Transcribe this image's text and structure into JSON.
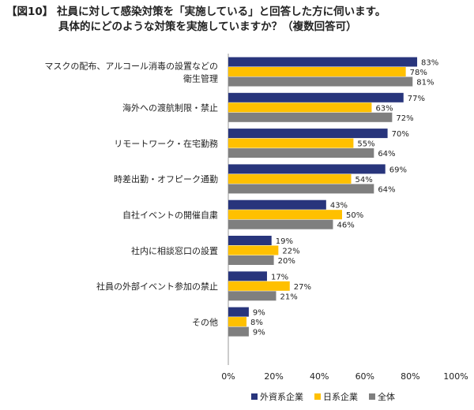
{
  "title": {
    "line1": "【図10】 社員に対して感染対策を「実施している」と回答した方に伺います。",
    "line2": "具体的にどのような対策を実施していますか？（複数回答可）"
  },
  "chart_data": {
    "type": "bar",
    "orientation": "horizontal",
    "categories": [
      [
        "マスクの配布、アルコール消毒の設置などの",
        "衛生管理"
      ],
      [
        "海外への渡航制限・禁止"
      ],
      [
        "リモートワーク・在宅勤務"
      ],
      [
        "時差出勤・オフピーク通勤"
      ],
      [
        "自社イベントの開催自粛"
      ],
      [
        "社内に相談窓口の設置"
      ],
      [
        "社員の外部イベント参加の禁止"
      ],
      [
        "その他"
      ]
    ],
    "series": [
      {
        "name": "外資系企業",
        "color": "#28357c",
        "values": [
          83,
          77,
          70,
          69,
          43,
          19,
          17,
          9
        ]
      },
      {
        "name": "日系企業",
        "color": "#ffc000",
        "values": [
          78,
          63,
          55,
          54,
          50,
          22,
          27,
          8
        ]
      },
      {
        "name": "全体",
        "color": "#7f7f7f",
        "values": [
          81,
          72,
          64,
          64,
          46,
          20,
          21,
          9
        ]
      }
    ],
    "value_suffix": "%",
    "xlim": [
      0,
      100
    ],
    "xticks": [
      0,
      20,
      40,
      60,
      80,
      100
    ],
    "grid": false,
    "legend_position": "bottom"
  }
}
